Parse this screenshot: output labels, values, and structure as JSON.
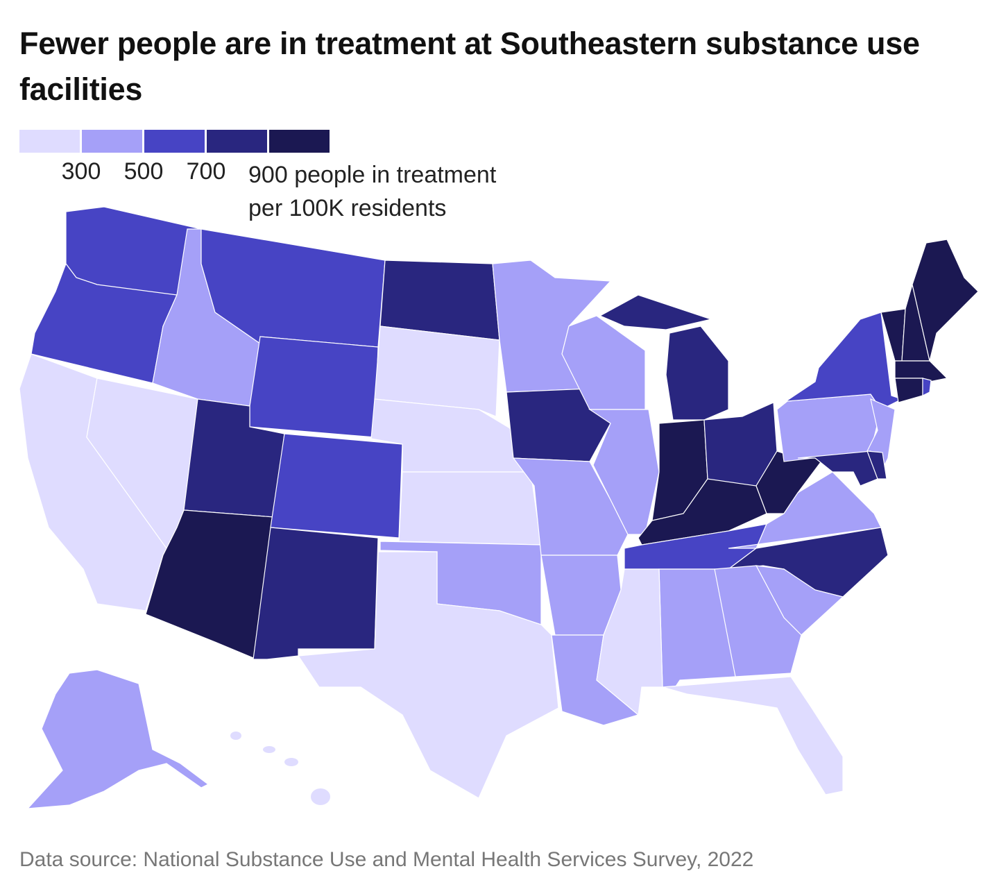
{
  "title": "Fewer people are in treatment at Southeastern substance use facilities",
  "legend": {
    "colors": [
      "#dfdcff",
      "#a5a0f8",
      "#4744c4",
      "#29267f",
      "#1b1852"
    ],
    "thresholds": [
      "300",
      "500",
      "700",
      "900"
    ],
    "unit_line1": "people in treatment",
    "unit_line2": "per 100K residents"
  },
  "states": {
    "WA": 2,
    "OR": 2,
    "CA": 0,
    "NV": 0,
    "ID": 1,
    "MT": 2,
    "WY": 2,
    "UT": 3,
    "AZ": 4,
    "CO": 2,
    "NM": 3,
    "ND": 3,
    "SD": 0,
    "NE": 0,
    "KS": 0,
    "OK": 1,
    "TX": 0,
    "MN": 1,
    "IA": 3,
    "MO": 1,
    "AR": 1,
    "LA": 1,
    "WI": 1,
    "IL": 1,
    "MI": 3,
    "MIU": 3,
    "IN": 4,
    "OH": 3,
    "KY": 4,
    "TN": 2,
    "MS": 0,
    "AL": 1,
    "GA": 1,
    "FL": 0,
    "SC": 1,
    "NC": 3,
    "VA": 1,
    "WV": 4,
    "MD": 3,
    "DE": 3,
    "PA": 1,
    "NJ": 1,
    "NY": 2,
    "CT": 4,
    "RI": 2,
    "MA": 4,
    "VT": 4,
    "NH": 4,
    "ME": 4,
    "AK": 1,
    "HI": 0
  },
  "source": "Data source: National Substance Use and Mental Health Services Survey, 2022"
}
